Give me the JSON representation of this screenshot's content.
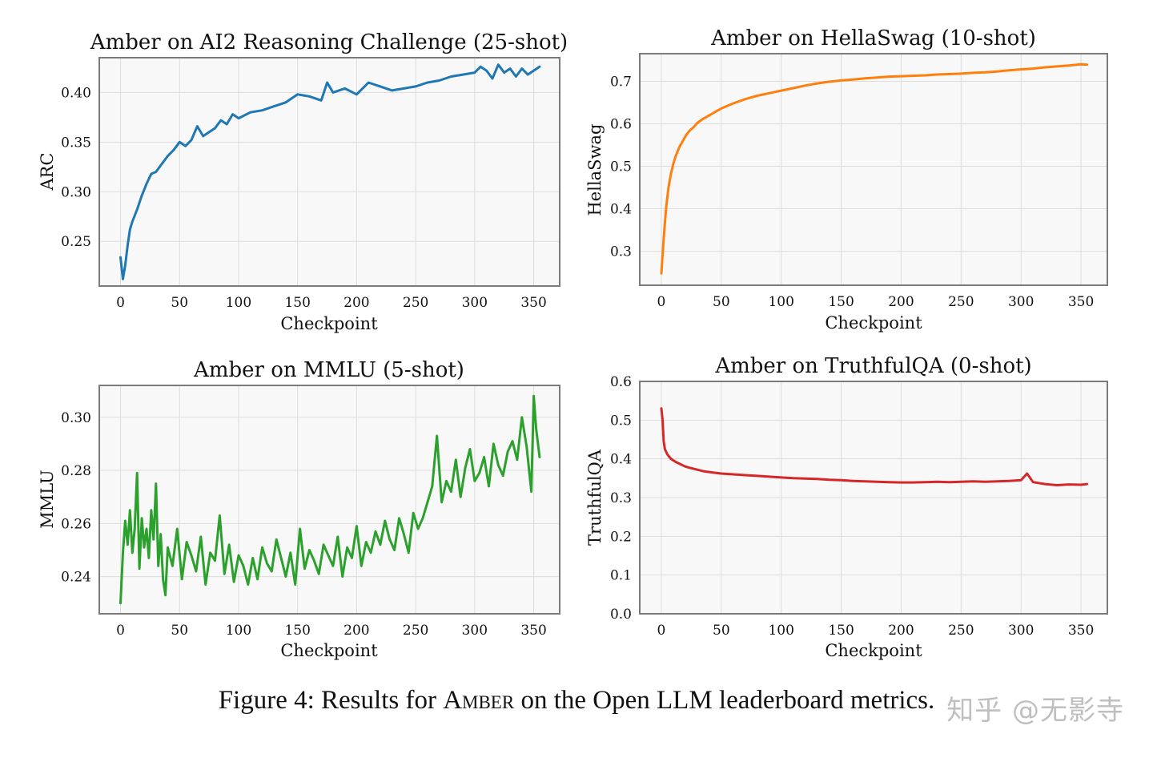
{
  "chart_data": [
    {
      "id": "arc",
      "type": "line",
      "title": "Amber on AI2 Reasoning Challenge (25-shot)",
      "xlabel": "Checkpoint",
      "ylabel": "ARC",
      "xlim": [
        -18,
        372
      ],
      "ylim": [
        0.205,
        0.435
      ],
      "xticks": [
        0,
        50,
        100,
        150,
        200,
        250,
        300,
        350
      ],
      "xtick_labels": [
        "0",
        "50",
        "100",
        "150",
        "200",
        "250",
        "300",
        "350"
      ],
      "yticks": [
        0.25,
        0.3,
        0.35,
        0.4
      ],
      "ytick_labels": [
        "0.25",
        "0.30",
        "0.35",
        "0.40"
      ],
      "grid": true,
      "color": "#1f77b4",
      "x": [
        0,
        2,
        4,
        6,
        8,
        10,
        14,
        18,
        22,
        26,
        30,
        35,
        40,
        45,
        50,
        55,
        60,
        65,
        70,
        75,
        80,
        85,
        90,
        95,
        100,
        110,
        120,
        130,
        140,
        150,
        160,
        170,
        175,
        180,
        190,
        200,
        210,
        220,
        230,
        240,
        250,
        260,
        270,
        280,
        290,
        300,
        305,
        310,
        315,
        320,
        325,
        330,
        335,
        340,
        345,
        350,
        355
      ],
      "values": [
        0.234,
        0.212,
        0.226,
        0.246,
        0.262,
        0.27,
        0.282,
        0.296,
        0.308,
        0.318,
        0.32,
        0.328,
        0.336,
        0.342,
        0.35,
        0.346,
        0.352,
        0.366,
        0.356,
        0.36,
        0.364,
        0.372,
        0.368,
        0.378,
        0.374,
        0.38,
        0.382,
        0.386,
        0.39,
        0.398,
        0.396,
        0.392,
        0.41,
        0.4,
        0.404,
        0.398,
        0.41,
        0.406,
        0.402,
        0.404,
        0.406,
        0.41,
        0.412,
        0.416,
        0.418,
        0.42,
        0.426,
        0.422,
        0.414,
        0.428,
        0.42,
        0.424,
        0.416,
        0.424,
        0.418,
        0.422,
        0.426
      ]
    },
    {
      "id": "hellaswag",
      "type": "line",
      "title": "Amber on HellaSwag (10-shot)",
      "xlabel": "Checkpoint",
      "ylabel": "HellaSwag",
      "xlim": [
        -18,
        372
      ],
      "ylim": [
        0.22,
        0.765
      ],
      "xticks": [
        0,
        50,
        100,
        150,
        200,
        250,
        300,
        350
      ],
      "xtick_labels": [
        "0",
        "50",
        "100",
        "150",
        "200",
        "250",
        "300",
        "350"
      ],
      "yticks": [
        0.3,
        0.4,
        0.5,
        0.6,
        0.7
      ],
      "ytick_labels": [
        "0.3",
        "0.4",
        "0.5",
        "0.6",
        "0.7"
      ],
      "grid": true,
      "color": "#ff7f0e",
      "x": [
        0,
        2,
        4,
        6,
        8,
        10,
        12,
        15,
        18,
        21,
        24,
        27,
        30,
        35,
        40,
        45,
        50,
        60,
        70,
        80,
        90,
        100,
        110,
        120,
        130,
        140,
        150,
        160,
        170,
        180,
        190,
        200,
        210,
        220,
        230,
        240,
        250,
        260,
        270,
        280,
        290,
        300,
        310,
        320,
        330,
        340,
        350,
        355
      ],
      "values": [
        0.248,
        0.33,
        0.402,
        0.45,
        0.482,
        0.506,
        0.524,
        0.545,
        0.56,
        0.575,
        0.585,
        0.592,
        0.602,
        0.612,
        0.62,
        0.628,
        0.636,
        0.648,
        0.658,
        0.666,
        0.672,
        0.678,
        0.684,
        0.69,
        0.695,
        0.699,
        0.702,
        0.704,
        0.707,
        0.709,
        0.711,
        0.712,
        0.713,
        0.714,
        0.716,
        0.717,
        0.718,
        0.72,
        0.721,
        0.723,
        0.726,
        0.728,
        0.73,
        0.733,
        0.735,
        0.737,
        0.74,
        0.739
      ]
    },
    {
      "id": "mmlu",
      "type": "line",
      "title": "Amber on MMLU (5-shot)",
      "xlabel": "Checkpoint",
      "ylabel": "MMLU",
      "xlim": [
        -18,
        372
      ],
      "ylim": [
        0.226,
        0.312
      ],
      "xticks": [
        0,
        50,
        100,
        150,
        200,
        250,
        300,
        350
      ],
      "xtick_labels": [
        "0",
        "50",
        "100",
        "150",
        "200",
        "250",
        "300",
        "350"
      ],
      "yticks": [
        0.24,
        0.26,
        0.28,
        0.3
      ],
      "ytick_labels": [
        "0.24",
        "0.26",
        "0.28",
        "0.30"
      ],
      "grid": true,
      "color": "#2ca02c",
      "x": [
        0,
        2,
        4,
        6,
        8,
        10,
        12,
        14,
        16,
        18,
        20,
        22,
        24,
        26,
        28,
        30,
        32,
        34,
        36,
        38,
        40,
        44,
        48,
        52,
        56,
        60,
        64,
        68,
        72,
        76,
        80,
        84,
        88,
        92,
        96,
        100,
        104,
        108,
        112,
        116,
        120,
        124,
        128,
        132,
        136,
        140,
        144,
        148,
        152,
        156,
        160,
        164,
        168,
        172,
        176,
        180,
        184,
        188,
        192,
        196,
        200,
        204,
        208,
        212,
        216,
        220,
        224,
        228,
        232,
        236,
        240,
        244,
        248,
        252,
        256,
        260,
        264,
        268,
        272,
        276,
        280,
        284,
        288,
        292,
        296,
        300,
        304,
        308,
        312,
        316,
        320,
        324,
        328,
        332,
        336,
        340,
        344,
        348,
        350,
        352,
        355
      ],
      "values": [
        0.23,
        0.249,
        0.261,
        0.252,
        0.265,
        0.249,
        0.258,
        0.279,
        0.243,
        0.262,
        0.251,
        0.258,
        0.247,
        0.265,
        0.254,
        0.275,
        0.244,
        0.256,
        0.239,
        0.233,
        0.251,
        0.244,
        0.258,
        0.239,
        0.253,
        0.248,
        0.242,
        0.255,
        0.237,
        0.249,
        0.246,
        0.263,
        0.241,
        0.252,
        0.238,
        0.248,
        0.244,
        0.237,
        0.247,
        0.239,
        0.251,
        0.245,
        0.242,
        0.254,
        0.247,
        0.24,
        0.249,
        0.237,
        0.258,
        0.243,
        0.25,
        0.246,
        0.241,
        0.252,
        0.248,
        0.244,
        0.255,
        0.24,
        0.251,
        0.247,
        0.259,
        0.244,
        0.253,
        0.249,
        0.257,
        0.252,
        0.261,
        0.254,
        0.25,
        0.262,
        0.256,
        0.249,
        0.264,
        0.258,
        0.262,
        0.268,
        0.274,
        0.293,
        0.268,
        0.276,
        0.272,
        0.284,
        0.27,
        0.281,
        0.288,
        0.276,
        0.279,
        0.285,
        0.274,
        0.29,
        0.282,
        0.278,
        0.287,
        0.291,
        0.284,
        0.3,
        0.289,
        0.272,
        0.308,
        0.296,
        0.285
      ]
    },
    {
      "id": "truthfulqa",
      "type": "line",
      "title": "Amber on TruthfulQA (0-shot)",
      "xlabel": "Checkpoint",
      "ylabel": "TruthfulQA",
      "xlim": [
        -18,
        372
      ],
      "ylim": [
        0.0,
        0.6
      ],
      "xticks": [
        0,
        50,
        100,
        150,
        200,
        250,
        300,
        350
      ],
      "xtick_labels": [
        "0",
        "50",
        "100",
        "150",
        "200",
        "250",
        "300",
        "350"
      ],
      "yticks": [
        0.0,
        0.1,
        0.2,
        0.3,
        0.4,
        0.5,
        0.6
      ],
      "ytick_labels": [
        "0.0",
        "0.1",
        "0.2",
        "0.3",
        "0.4",
        "0.5",
        "0.6"
      ],
      "grid": true,
      "color": "#d62728",
      "x": [
        0,
        1,
        2,
        3,
        5,
        8,
        12,
        16,
        20,
        25,
        30,
        35,
        40,
        45,
        50,
        60,
        70,
        80,
        90,
        100,
        110,
        120,
        130,
        140,
        150,
        160,
        170,
        180,
        190,
        200,
        210,
        220,
        230,
        240,
        250,
        260,
        270,
        280,
        290,
        300,
        305,
        310,
        320,
        330,
        340,
        350,
        355
      ],
      "values": [
        0.53,
        0.5,
        0.445,
        0.425,
        0.412,
        0.4,
        0.392,
        0.386,
        0.38,
        0.376,
        0.372,
        0.368,
        0.366,
        0.364,
        0.362,
        0.36,
        0.358,
        0.356,
        0.354,
        0.352,
        0.35,
        0.349,
        0.348,
        0.346,
        0.345,
        0.343,
        0.342,
        0.341,
        0.34,
        0.339,
        0.339,
        0.34,
        0.341,
        0.34,
        0.341,
        0.342,
        0.341,
        0.342,
        0.343,
        0.345,
        0.362,
        0.34,
        0.335,
        0.332,
        0.334,
        0.333,
        0.335
      ]
    }
  ],
  "caption": {
    "prefix": "Figure 4: Results for ",
    "model": "Amber",
    "suffix": " on the Open LLM leaderboard metrics."
  },
  "watermark": "知乎 @无影寺"
}
